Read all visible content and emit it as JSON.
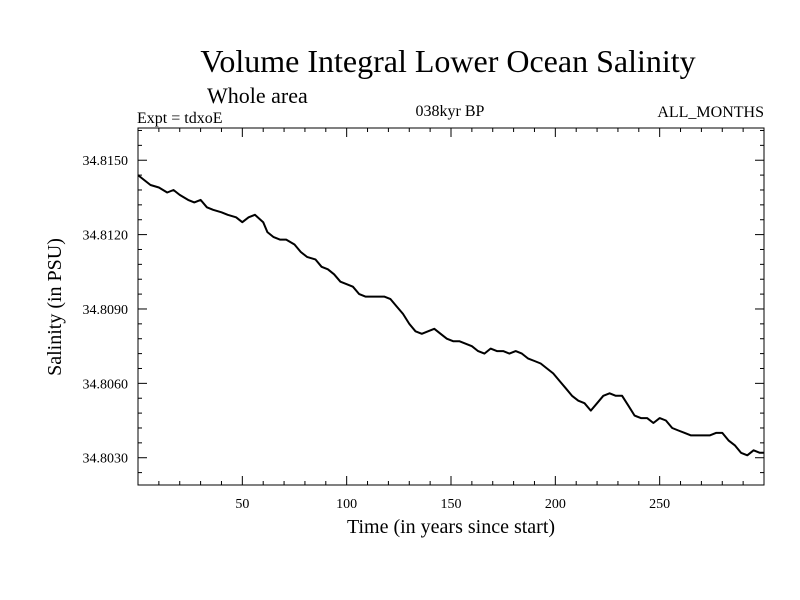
{
  "chart_data": {
    "type": "line",
    "title": "Volume Integral Lower Ocean Salinity",
    "subtitle": "Whole area",
    "left_label": "Expt = tdxoE",
    "center_label": "038kyr BP",
    "right_label": "ALL_MONTHS",
    "xlabel": "Time (in years since start)",
    "ylabel": "Salinity (in PSU)",
    "xlim": [
      0,
      300
    ],
    "ylim": [
      34.8019,
      34.8163
    ],
    "x_ticks": [
      50,
      100,
      150,
      200,
      250
    ],
    "x_tick_labels": [
      "50",
      "100",
      "150",
      "200",
      "250"
    ],
    "y_ticks": [
      34.803,
      34.806,
      34.809,
      34.812,
      34.815
    ],
    "y_tick_labels": [
      "34.8030",
      "34.8060",
      "34.8090",
      "34.8120",
      "34.8150"
    ],
    "grid": false,
    "line_color": "#000000",
    "series": [
      {
        "x": [
          0,
          3,
          6,
          10,
          14,
          17,
          20,
          24,
          27,
          30,
          33,
          36,
          40,
          43,
          47,
          50,
          53,
          56,
          60,
          62,
          65,
          68,
          71,
          75,
          78,
          81,
          85,
          88,
          91,
          94,
          97,
          100,
          103,
          106,
          109,
          112,
          115,
          118,
          121,
          124,
          127,
          130,
          133,
          136,
          139,
          142,
          145,
          148,
          151,
          154,
          157,
          160,
          163,
          166,
          169,
          172,
          175,
          178,
          181,
          184,
          187,
          190,
          193,
          196,
          199,
          202,
          205,
          208,
          211,
          214,
          217,
          220,
          223,
          226,
          229,
          232,
          235,
          238,
          241,
          244,
          247,
          250,
          253,
          256,
          259,
          262,
          265,
          268,
          271,
          274,
          277,
          280,
          283,
          286,
          289,
          292,
          295,
          298,
          300
        ],
        "y": [
          34.8144,
          34.8142,
          34.814,
          34.8139,
          34.8137,
          34.8138,
          34.8136,
          34.8134,
          34.8133,
          34.8134,
          34.8131,
          34.813,
          34.8129,
          34.8128,
          34.8127,
          34.8125,
          34.8127,
          34.8128,
          34.8125,
          34.8121,
          34.8119,
          34.8118,
          34.8118,
          34.8116,
          34.8113,
          34.8111,
          34.811,
          34.8107,
          34.8106,
          34.8104,
          34.8101,
          34.81,
          34.8099,
          34.8096,
          34.8095,
          34.8095,
          34.8095,
          34.8095,
          34.8094,
          34.8091,
          34.8088,
          34.8084,
          34.8081,
          34.808,
          34.8081,
          34.8082,
          34.808,
          34.8078,
          34.8077,
          34.8077,
          34.8076,
          34.8075,
          34.8073,
          34.8072,
          34.8074,
          34.8073,
          34.8073,
          34.8072,
          34.8073,
          34.8072,
          34.807,
          34.8069,
          34.8068,
          34.8066,
          34.8064,
          34.8061,
          34.8058,
          34.8055,
          34.8053,
          34.8052,
          34.8049,
          34.8052,
          34.8055,
          34.8056,
          34.8055,
          34.8055,
          34.8051,
          34.8047,
          34.8046,
          34.8046,
          34.8044,
          34.8046,
          34.8045,
          34.8042,
          34.8041,
          34.804,
          34.8039,
          34.8039,
          34.8039,
          34.8039,
          34.804,
          34.804,
          34.8037,
          34.8035,
          34.8032,
          34.8031,
          34.8033,
          34.8032,
          34.8032
        ]
      }
    ]
  }
}
